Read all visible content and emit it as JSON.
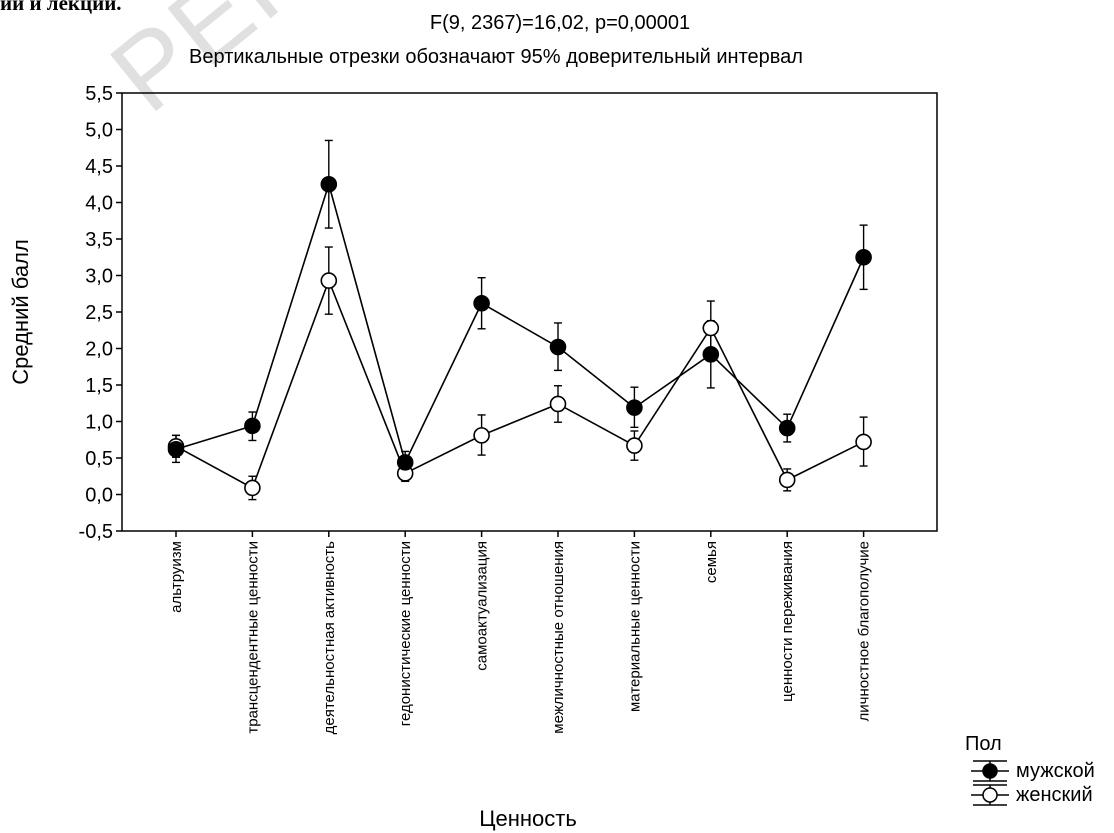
{
  "page": {
    "top_text": "ии и лекции.",
    "watermark": "РЕПОЗИТОРИЙ"
  },
  "chart_data": {
    "type": "line",
    "title": "F(9, 2367)=16,02, p=0,00001",
    "subtitle": "Вертикальные отрезки обозначают 95% доверительный интервал",
    "xlabel": "Ценность",
    "ylabel": "Средний балл",
    "ylim": [
      -0.5,
      5.5
    ],
    "yticks": [
      "-0,5",
      "0,0",
      "0,5",
      "1,0",
      "1,5",
      "2,0",
      "2,5",
      "3,0",
      "3,5",
      "4,0",
      "4,5",
      "5,0",
      "5,5"
    ],
    "grid": false,
    "legend_position": "bottom-right",
    "legend_title": "Пол",
    "categories": [
      "альтруизм",
      "трансцендентные ценности",
      "деятельностная активность",
      "гедонистические ценности",
      "самоактуализация",
      "межличностные отношения",
      "материальные ценности",
      "семья",
      "ценности переживания",
      "личностное благополучие"
    ],
    "series": [
      {
        "name": "мужской",
        "marker": "filled-circle",
        "color": "#000000",
        "values": [
          0.62,
          0.94,
          4.25,
          0.44,
          2.62,
          2.02,
          1.19,
          1.92,
          0.91,
          3.25
        ],
        "ci_low": [
          0.44,
          0.74,
          3.65,
          0.29,
          2.27,
          1.7,
          0.92,
          1.46,
          0.72,
          2.81
        ],
        "ci_high": [
          0.81,
          1.13,
          4.85,
          0.59,
          2.97,
          2.35,
          1.47,
          2.38,
          1.1,
          3.69
        ]
      },
      {
        "name": "женский",
        "marker": "open-circle",
        "color": "#000000",
        "values": [
          0.66,
          0.09,
          2.93,
          0.29,
          0.81,
          1.24,
          0.67,
          2.28,
          0.2,
          0.72
        ],
        "ci_low": [
          0.51,
          -0.07,
          2.47,
          0.18,
          0.54,
          0.99,
          0.47,
          1.92,
          0.05,
          0.39
        ],
        "ci_high": [
          0.81,
          0.25,
          3.39,
          0.4,
          1.09,
          1.49,
          0.87,
          2.65,
          0.35,
          1.06
        ]
      }
    ]
  }
}
